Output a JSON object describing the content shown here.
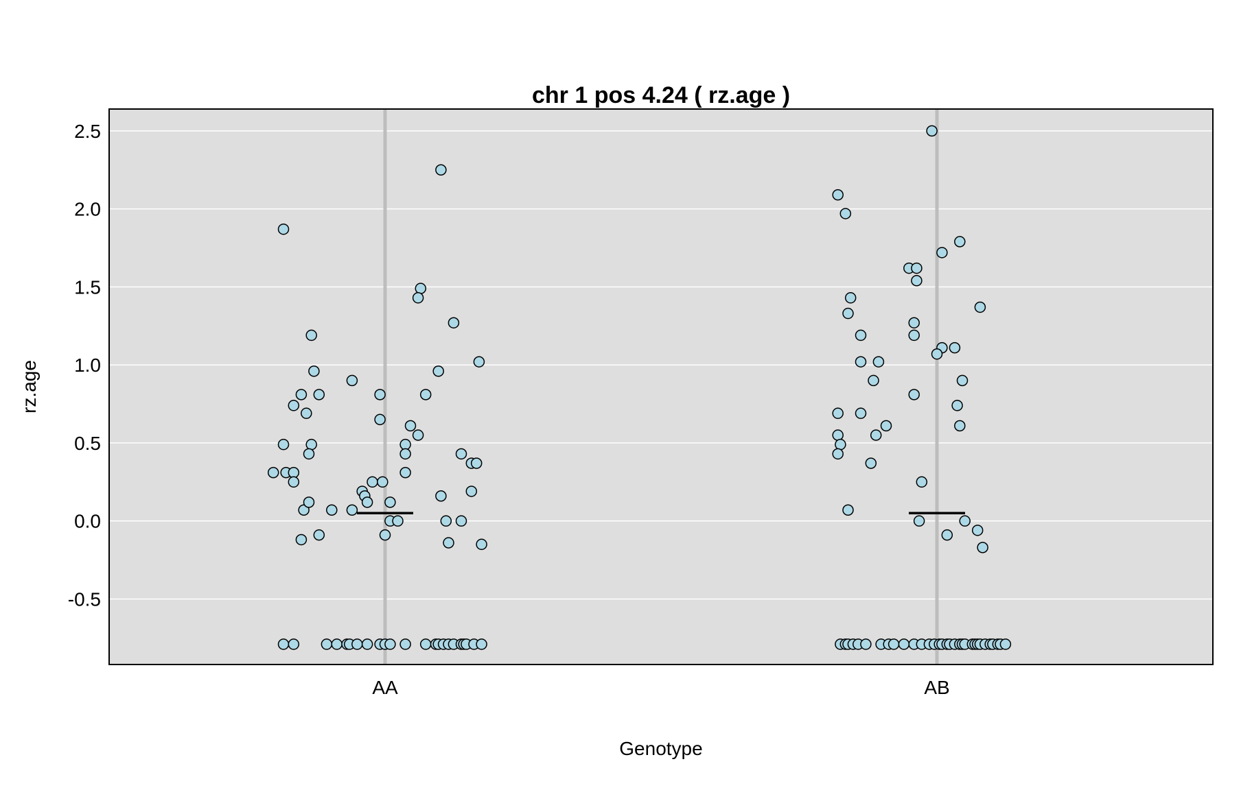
{
  "chart_data": {
    "type": "scatter",
    "title": "chr 1 pos 4.24 ( rz.age )",
    "xlabel": "Genotype",
    "ylabel": "rz.age",
    "categories": [
      "AA",
      "AB"
    ],
    "ylim": [
      -0.92,
      2.64
    ],
    "yticks": [
      "2.5",
      "2.0",
      "1.5",
      "1.0",
      "0.5",
      "0.0",
      "-0.5"
    ],
    "grid": true,
    "colors": {
      "panel": "#dedede",
      "point_fill": "#add8e6",
      "point_stroke": "#000000",
      "grid": "#ffffff",
      "category_line": "#bdbdbd",
      "mean_line": "#000000"
    },
    "series": [
      {
        "category": "AA",
        "mean": 0.05,
        "points": [
          [
            -0.4,
            1.87
          ],
          [
            0.22,
            2.25
          ],
          [
            -0.29,
            1.19
          ],
          [
            -0.28,
            0.96
          ],
          [
            -0.33,
            0.81
          ],
          [
            -0.36,
            0.74
          ],
          [
            -0.31,
            0.69
          ],
          [
            -0.4,
            0.49
          ],
          [
            -0.29,
            0.49
          ],
          [
            -0.3,
            0.43
          ],
          [
            -0.44,
            0.31
          ],
          [
            -0.39,
            0.31
          ],
          [
            -0.36,
            0.31
          ],
          [
            -0.36,
            0.25
          ],
          [
            -0.26,
            0.81
          ],
          [
            -0.32,
            0.07
          ],
          [
            -0.21,
            0.07
          ],
          [
            -0.3,
            0.12
          ],
          [
            -0.33,
            -0.12
          ],
          [
            -0.26,
            -0.09
          ],
          [
            -0.13,
            0.9
          ],
          [
            -0.02,
            0.81
          ],
          [
            -0.02,
            0.65
          ],
          [
            -0.05,
            0.25
          ],
          [
            -0.01,
            0.25
          ],
          [
            -0.09,
            0.19
          ],
          [
            -0.08,
            0.16
          ],
          [
            -0.07,
            0.12
          ],
          [
            -0.13,
            0.07
          ],
          [
            0.02,
            0.12
          ],
          [
            0.02,
            -0.0
          ],
          [
            0.05,
            -0.0
          ],
          [
            0.0,
            -0.09
          ],
          [
            0.14,
            1.49
          ],
          [
            0.13,
            1.43
          ],
          [
            0.16,
            0.81
          ],
          [
            0.1,
            0.61
          ],
          [
            0.13,
            0.55
          ],
          [
            0.08,
            0.49
          ],
          [
            0.08,
            0.43
          ],
          [
            0.08,
            0.31
          ],
          [
            0.27,
            1.27
          ],
          [
            0.21,
            0.96
          ],
          [
            0.37,
            1.02
          ],
          [
            0.3,
            0.43
          ],
          [
            0.34,
            0.37
          ],
          [
            0.36,
            0.37
          ],
          [
            0.34,
            0.19
          ],
          [
            0.22,
            0.16
          ],
          [
            0.24,
            -0.0
          ],
          [
            0.3,
            -0.0
          ],
          [
            0.25,
            -0.14
          ],
          [
            0.38,
            -0.15
          ],
          [
            -0.4,
            -0.79
          ],
          [
            -0.36,
            -0.79
          ],
          [
            -0.23,
            -0.79
          ],
          [
            -0.19,
            -0.79
          ],
          [
            -0.15,
            -0.79
          ],
          [
            -0.14,
            -0.79
          ],
          [
            -0.11,
            -0.79
          ],
          [
            -0.07,
            -0.79
          ],
          [
            -0.02,
            -0.79
          ],
          [
            0.0,
            -0.79
          ],
          [
            0.02,
            -0.79
          ],
          [
            0.08,
            -0.79
          ],
          [
            0.16,
            -0.79
          ],
          [
            0.2,
            -0.79
          ],
          [
            0.21,
            -0.79
          ],
          [
            0.23,
            -0.79
          ],
          [
            0.25,
            -0.79
          ],
          [
            0.27,
            -0.79
          ],
          [
            0.3,
            -0.79
          ],
          [
            0.31,
            -0.79
          ],
          [
            0.32,
            -0.79
          ],
          [
            0.35,
            -0.79
          ],
          [
            0.38,
            -0.79
          ]
        ]
      },
      {
        "category": "AB",
        "mean": 0.05,
        "points": [
          [
            -0.02,
            2.5
          ],
          [
            -0.39,
            2.09
          ],
          [
            -0.36,
            1.97
          ],
          [
            -0.11,
            1.62
          ],
          [
            -0.08,
            1.62
          ],
          [
            -0.08,
            1.54
          ],
          [
            -0.34,
            1.43
          ],
          [
            -0.35,
            1.33
          ],
          [
            -0.09,
            1.27
          ],
          [
            -0.3,
            1.19
          ],
          [
            -0.09,
            1.19
          ],
          [
            0.02,
            1.11
          ],
          [
            0.07,
            1.11
          ],
          [
            0.0,
            1.07
          ],
          [
            -0.3,
            1.02
          ],
          [
            -0.23,
            1.02
          ],
          [
            -0.25,
            0.9
          ],
          [
            -0.09,
            0.81
          ],
          [
            -0.39,
            0.69
          ],
          [
            -0.3,
            0.69
          ],
          [
            -0.2,
            0.61
          ],
          [
            -0.39,
            0.55
          ],
          [
            -0.24,
            0.55
          ],
          [
            -0.38,
            0.49
          ],
          [
            -0.39,
            0.43
          ],
          [
            -0.26,
            0.37
          ],
          [
            -0.06,
            0.25
          ],
          [
            -0.35,
            0.07
          ],
          [
            -0.07,
            -0.0
          ],
          [
            0.04,
            -0.09
          ],
          [
            0.02,
            1.72
          ],
          [
            0.09,
            1.79
          ],
          [
            0.17,
            1.37
          ],
          [
            0.1,
            0.9
          ],
          [
            0.08,
            0.74
          ],
          [
            0.09,
            0.61
          ],
          [
            0.11,
            -0.0
          ],
          [
            0.16,
            -0.06
          ],
          [
            0.18,
            -0.17
          ],
          [
            -0.38,
            -0.79
          ],
          [
            -0.36,
            -0.79
          ],
          [
            -0.35,
            -0.79
          ],
          [
            -0.33,
            -0.79
          ],
          [
            -0.31,
            -0.79
          ],
          [
            -0.28,
            -0.79
          ],
          [
            -0.22,
            -0.79
          ],
          [
            -0.19,
            -0.79
          ],
          [
            -0.17,
            -0.79
          ],
          [
            -0.13,
            -0.79
          ],
          [
            -0.09,
            -0.79
          ],
          [
            -0.06,
            -0.79
          ],
          [
            -0.03,
            -0.79
          ],
          [
            -0.01,
            -0.79
          ],
          [
            0.01,
            -0.79
          ],
          [
            0.02,
            -0.79
          ],
          [
            0.04,
            -0.79
          ],
          [
            0.05,
            -0.79
          ],
          [
            0.07,
            -0.79
          ],
          [
            0.09,
            -0.79
          ],
          [
            0.1,
            -0.79
          ],
          [
            0.11,
            -0.79
          ],
          [
            0.14,
            -0.79
          ],
          [
            0.15,
            -0.79
          ],
          [
            0.16,
            -0.79
          ],
          [
            0.17,
            -0.79
          ],
          [
            0.19,
            -0.79
          ],
          [
            0.21,
            -0.79
          ],
          [
            0.22,
            -0.79
          ],
          [
            0.24,
            -0.79
          ],
          [
            0.25,
            -0.79
          ],
          [
            0.27,
            -0.79
          ]
        ]
      }
    ]
  }
}
